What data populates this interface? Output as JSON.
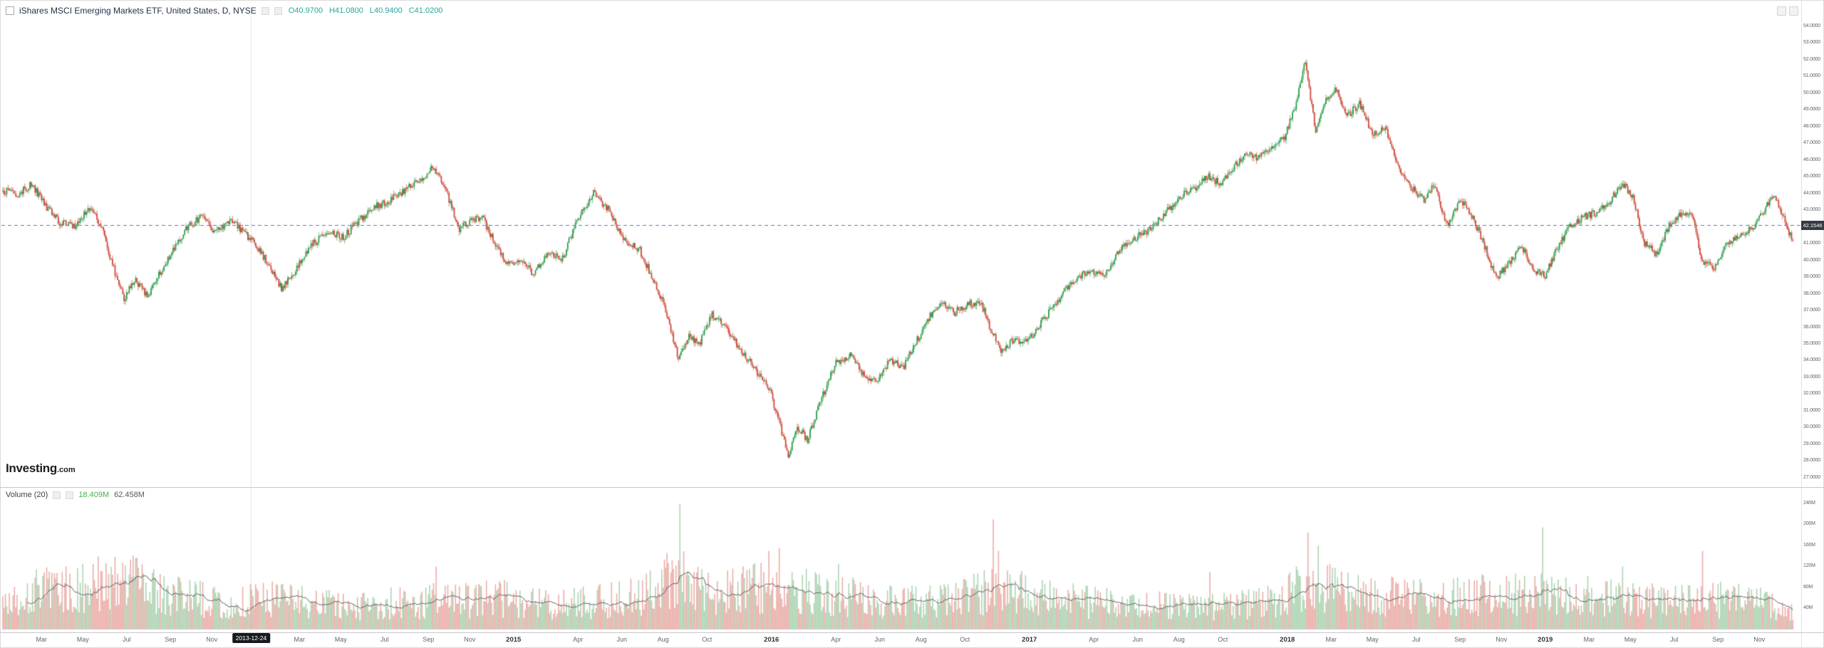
{
  "header": {
    "title": "iShares MSCI Emerging Markets ETF, United States, D, NYSE",
    "ohlc": {
      "open": "O40.9700",
      "high": "H41.0800",
      "low": "L40.9400",
      "close": "C41.0200"
    }
  },
  "watermark": {
    "brand": "Investing",
    "tld": ".com"
  },
  "main_pane": {
    "price_line": {
      "value": 42.1546,
      "label": "42.1546"
    }
  },
  "volume_pane": {
    "legend_title": "Volume (20)",
    "current_value": "18.409M",
    "ma_value": "62.458M"
  },
  "price_axis": {
    "labels": [
      "54.0000",
      "53.0000",
      "52.0000",
      "51.0000",
      "50.0000",
      "49.0000",
      "48.0000",
      "47.0000",
      "46.0000",
      "45.0000",
      "44.0000",
      "43.0000",
      "42.0000",
      "41.0000",
      "40.0000",
      "39.0000",
      "38.0000",
      "37.0000",
      "36.0000",
      "35.0000",
      "34.0000",
      "33.0000",
      "32.0000",
      "31.0000",
      "30.0000",
      "29.0000",
      "28.0000",
      "27.0000"
    ]
  },
  "volume_axis": {
    "labels": [
      {
        "text": "240M",
        "v": 240
      },
      {
        "text": "200M",
        "v": 200
      },
      {
        "text": "160M",
        "v": 160
      },
      {
        "text": "120M",
        "v": 120
      },
      {
        "text": "80M",
        "v": 80
      },
      {
        "text": "40M",
        "v": 40
      }
    ]
  },
  "time_axis": {
    "crosshair_label": "2013-12-24",
    "crosshair_t": 2013.98,
    "labels": [
      {
        "text": "Mar",
        "t": 2013.17
      },
      {
        "text": "May",
        "t": 2013.33
      },
      {
        "text": "Jul",
        "t": 2013.5
      },
      {
        "text": "Sep",
        "t": 2013.67
      },
      {
        "text": "Nov",
        "t": 2013.83
      },
      {
        "text": "Mar",
        "t": 2014.17
      },
      {
        "text": "May",
        "t": 2014.33
      },
      {
        "text": "Jul",
        "t": 2014.5
      },
      {
        "text": "Sep",
        "t": 2014.67
      },
      {
        "text": "Nov",
        "t": 2014.83
      },
      {
        "text": "2015",
        "t": 2015.0,
        "year": true
      },
      {
        "text": "Apr",
        "t": 2015.25
      },
      {
        "text": "Jun",
        "t": 2015.42
      },
      {
        "text": "Aug",
        "t": 2015.58
      },
      {
        "text": "Oct",
        "t": 2015.75
      },
      {
        "text": "2016",
        "t": 2016.0,
        "year": true
      },
      {
        "text": "Apr",
        "t": 2016.25
      },
      {
        "text": "Jun",
        "t": 2016.42
      },
      {
        "text": "Aug",
        "t": 2016.58
      },
      {
        "text": "Oct",
        "t": 2016.75
      },
      {
        "text": "2017",
        "t": 2017.0,
        "year": true
      },
      {
        "text": "Apr",
        "t": 2017.25
      },
      {
        "text": "Jun",
        "t": 2017.42
      },
      {
        "text": "Aug",
        "t": 2017.58
      },
      {
        "text": "Oct",
        "t": 2017.75
      },
      {
        "text": "2018",
        "t": 2018.0,
        "year": true
      },
      {
        "text": "Mar",
        "t": 2018.17
      },
      {
        "text": "May",
        "t": 2018.33
      },
      {
        "text": "Jul",
        "t": 2018.5
      },
      {
        "text": "Sep",
        "t": 2018.67
      },
      {
        "text": "Nov",
        "t": 2018.83
      },
      {
        "text": "2019",
        "t": 2019.0,
        "year": true
      },
      {
        "text": "Mar",
        "t": 2019.17
      },
      {
        "text": "May",
        "t": 2019.33
      },
      {
        "text": "Jul",
        "t": 2019.5
      },
      {
        "text": "Sep",
        "t": 2019.67
      },
      {
        "text": "Nov",
        "t": 2019.83
      }
    ]
  },
  "chart_data": {
    "type": "candlestick_with_volume",
    "title": "iShares MSCI Emerging Markets ETF, Daily, NYSE",
    "interval": "D",
    "ylim": [
      26.8,
      54.4
    ],
    "volume_ylim_millions": [
      0,
      250
    ],
    "x_range_years": [
      2013.02,
      2019.96
    ],
    "last_ohlc": {
      "open": 40.97,
      "high": 41.08,
      "low": 40.94,
      "close": 41.02
    },
    "price_line_value": 42.1546,
    "price_path": [
      [
        2013.02,
        44.2
      ],
      [
        2013.08,
        44.0
      ],
      [
        2013.13,
        44.6
      ],
      [
        2013.19,
        43.2
      ],
      [
        2013.24,
        42.3
      ],
      [
        2013.3,
        42.0
      ],
      [
        2013.35,
        43.2
      ],
      [
        2013.4,
        42.2
      ],
      [
        2013.45,
        39.5
      ],
      [
        2013.49,
        37.7
      ],
      [
        2013.53,
        38.9
      ],
      [
        2013.58,
        37.9
      ],
      [
        2013.63,
        39.3
      ],
      [
        2013.68,
        40.6
      ],
      [
        2013.73,
        41.9
      ],
      [
        2013.79,
        42.7
      ],
      [
        2013.84,
        41.6
      ],
      [
        2013.9,
        42.4
      ],
      [
        2013.95,
        41.8
      ],
      [
        2014.0,
        40.9
      ],
      [
        2014.05,
        39.8
      ],
      [
        2014.1,
        38.3
      ],
      [
        2014.16,
        39.6
      ],
      [
        2014.22,
        41.0
      ],
      [
        2014.28,
        41.7
      ],
      [
        2014.34,
        41.4
      ],
      [
        2014.4,
        42.4
      ],
      [
        2014.46,
        43.2
      ],
      [
        2014.52,
        43.6
      ],
      [
        2014.58,
        44.2
      ],
      [
        2014.64,
        44.9
      ],
      [
        2014.69,
        45.6
      ],
      [
        2014.74,
        44.1
      ],
      [
        2014.79,
        41.9
      ],
      [
        2014.84,
        42.4
      ],
      [
        2014.88,
        42.6
      ],
      [
        2014.93,
        40.9
      ],
      [
        2014.98,
        39.7
      ],
      [
        2015.03,
        40.1
      ],
      [
        2015.08,
        39.2
      ],
      [
        2015.13,
        40.4
      ],
      [
        2015.19,
        40.1
      ],
      [
        2015.25,
        42.6
      ],
      [
        2015.31,
        44.0
      ],
      [
        2015.37,
        43.0
      ],
      [
        2015.43,
        41.2
      ],
      [
        2015.49,
        40.6
      ],
      [
        2015.55,
        38.6
      ],
      [
        2015.6,
        36.6
      ],
      [
        2015.64,
        34.0
      ],
      [
        2015.68,
        35.6
      ],
      [
        2015.72,
        35.0
      ],
      [
        2015.77,
        36.8
      ],
      [
        2015.82,
        36.1
      ],
      [
        2015.87,
        34.9
      ],
      [
        2015.93,
        33.6
      ],
      [
        2015.99,
        32.4
      ],
      [
        2016.03,
        30.3
      ],
      [
        2016.065,
        28.3
      ],
      [
        2016.1,
        30.1
      ],
      [
        2016.14,
        29.3
      ],
      [
        2016.19,
        31.6
      ],
      [
        2016.25,
        33.9
      ],
      [
        2016.31,
        34.4
      ],
      [
        2016.36,
        33.1
      ],
      [
        2016.41,
        32.7
      ],
      [
        2016.46,
        34.1
      ],
      [
        2016.51,
        33.6
      ],
      [
        2016.56,
        35.1
      ],
      [
        2016.61,
        36.6
      ],
      [
        2016.66,
        37.5
      ],
      [
        2016.71,
        36.9
      ],
      [
        2016.76,
        37.4
      ],
      [
        2016.81,
        37.6
      ],
      [
        2016.85,
        35.9
      ],
      [
        2016.89,
        34.6
      ],
      [
        2016.94,
        35.3
      ],
      [
        2016.99,
        35.1
      ],
      [
        2017.05,
        36.4
      ],
      [
        2017.11,
        37.6
      ],
      [
        2017.17,
        38.9
      ],
      [
        2017.23,
        39.3
      ],
      [
        2017.29,
        39.1
      ],
      [
        2017.35,
        40.6
      ],
      [
        2017.41,
        41.4
      ],
      [
        2017.47,
        41.9
      ],
      [
        2017.53,
        42.9
      ],
      [
        2017.59,
        43.9
      ],
      [
        2017.65,
        44.4
      ],
      [
        2017.69,
        45.1
      ],
      [
        2017.74,
        44.6
      ],
      [
        2017.79,
        45.6
      ],
      [
        2017.84,
        46.4
      ],
      [
        2017.89,
        46.1
      ],
      [
        2017.94,
        46.9
      ],
      [
        2017.99,
        47.4
      ],
      [
        2018.03,
        49.2
      ],
      [
        2018.07,
        52.0
      ],
      [
        2018.11,
        47.6
      ],
      [
        2018.15,
        49.6
      ],
      [
        2018.19,
        50.3
      ],
      [
        2018.23,
        48.6
      ],
      [
        2018.28,
        49.4
      ],
      [
        2018.33,
        47.6
      ],
      [
        2018.38,
        47.9
      ],
      [
        2018.43,
        45.6
      ],
      [
        2018.48,
        44.4
      ],
      [
        2018.53,
        43.6
      ],
      [
        2018.57,
        44.6
      ],
      [
        2018.62,
        42.1
      ],
      [
        2018.67,
        43.6
      ],
      [
        2018.71,
        42.9
      ],
      [
        2018.76,
        41.1
      ],
      [
        2018.81,
        38.9
      ],
      [
        2018.86,
        39.9
      ],
      [
        2018.91,
        40.9
      ],
      [
        2018.95,
        39.4
      ],
      [
        2019.0,
        39.1
      ],
      [
        2019.05,
        40.9
      ],
      [
        2019.1,
        42.1
      ],
      [
        2019.15,
        42.6
      ],
      [
        2019.2,
        42.9
      ],
      [
        2019.25,
        43.6
      ],
      [
        2019.3,
        44.6
      ],
      [
        2019.34,
        43.9
      ],
      [
        2019.38,
        41.1
      ],
      [
        2019.43,
        40.4
      ],
      [
        2019.48,
        42.1
      ],
      [
        2019.53,
        42.9
      ],
      [
        2019.57,
        42.6
      ],
      [
        2019.61,
        39.9
      ],
      [
        2019.66,
        39.6
      ],
      [
        2019.7,
        40.9
      ],
      [
        2019.75,
        41.6
      ],
      [
        2019.8,
        41.9
      ],
      [
        2019.85,
        43.1
      ],
      [
        2019.89,
        43.9
      ],
      [
        2019.93,
        42.4
      ],
      [
        2019.96,
        41.0
      ]
    ],
    "volume_profile_millions": [
      [
        2013.02,
        60
      ],
      [
        2013.2,
        80
      ],
      [
        2013.35,
        90
      ],
      [
        2013.5,
        95
      ],
      [
        2013.7,
        65
      ],
      [
        2013.9,
        55
      ],
      [
        2014.1,
        60
      ],
      [
        2014.4,
        48
      ],
      [
        2014.7,
        58
      ],
      [
        2014.95,
        62
      ],
      [
        2015.2,
        50
      ],
      [
        2015.5,
        65
      ],
      [
        2015.64,
        110
      ],
      [
        2015.8,
        75
      ],
      [
        2016.0,
        85
      ],
      [
        2016.2,
        70
      ],
      [
        2016.45,
        60
      ],
      [
        2016.7,
        55
      ],
      [
        2016.88,
        85
      ],
      [
        2017.1,
        60
      ],
      [
        2017.4,
        48
      ],
      [
        2017.7,
        45
      ],
      [
        2017.95,
        55
      ],
      [
        2018.07,
        90
      ],
      [
        2018.3,
        70
      ],
      [
        2018.6,
        62
      ],
      [
        2018.85,
        72
      ],
      [
        2019.1,
        68
      ],
      [
        2019.35,
        60
      ],
      [
        2019.6,
        62
      ],
      [
        2019.8,
        55
      ],
      [
        2019.96,
        40
      ]
    ],
    "volume_spikes_millions": [
      [
        2013.37,
        125
      ],
      [
        2014.7,
        120
      ],
      [
        2015.643,
        240
      ],
      [
        2015.99,
        150
      ],
      [
        2016.03,
        155
      ],
      [
        2016.26,
        125
      ],
      [
        2016.86,
        210
      ],
      [
        2016.88,
        150
      ],
      [
        2017.7,
        110
      ],
      [
        2018.08,
        185
      ],
      [
        2018.12,
        160
      ],
      [
        2018.99,
        195
      ],
      [
        2019.3,
        120
      ],
      [
        2019.61,
        150
      ]
    ],
    "colors": {
      "up": "#2f9e4f",
      "down": "#cf4a3c",
      "volume_up": "rgba(106,176,116,0.55)",
      "volume_down": "rgba(216,108,98,0.55)",
      "volume_ma": "#5b5b5b",
      "price_line": "#5d79b5",
      "ohlc_text": "#26a69a",
      "price_badge_bg": "#363a45",
      "date_badge_bg": "#16191f"
    }
  }
}
